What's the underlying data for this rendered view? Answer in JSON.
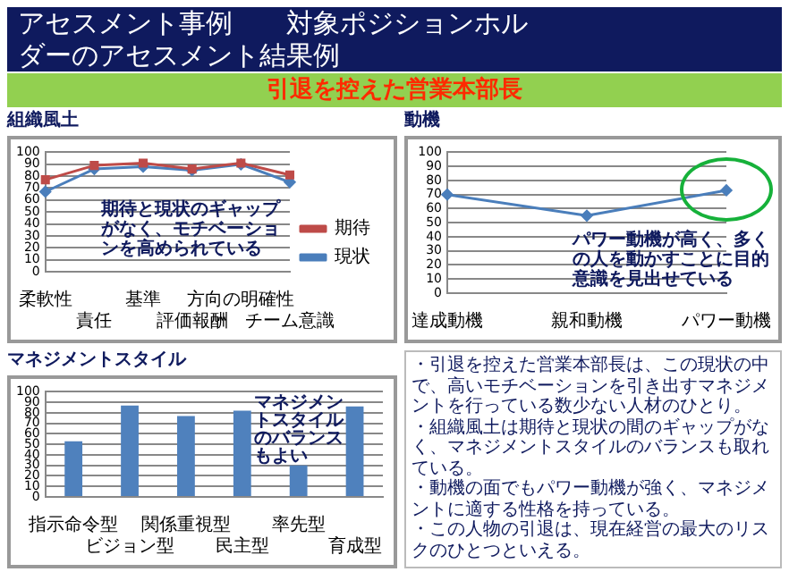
{
  "chart_data": [
    {
      "type": "other",
      "title": "アセスメント事例　　対象ポジションホルダーのアセスメント結果例",
      "subtitle": "引退を控えた営業本部長"
    },
    {
      "type": "line",
      "title": "組織風土",
      "categories": [
        "柔軟性",
        "責任",
        "基準",
        "評価報酬",
        "方向の明確性",
        "チーム意識"
      ],
      "series": [
        {
          "name": "現状",
          "color": "#4a7ebb",
          "marker": "diamond",
          "values": [
            67,
            86,
            88,
            85,
            90,
            75
          ]
        },
        {
          "name": "期待",
          "color": "#be4b48",
          "marker": "square",
          "values": [
            77,
            89,
            91,
            86,
            91,
            81
          ]
        }
      ],
      "ylim": [
        0,
        100
      ],
      "yticks": [
        0,
        10,
        20,
        30,
        40,
        50,
        60,
        70,
        80,
        90,
        100
      ],
      "grid": "y",
      "legend": "right",
      "annotations": [
        "期待と現状のギャップがなく、モチベーションを高められている"
      ]
    },
    {
      "type": "line",
      "title": "動機",
      "categories": [
        "達成動機",
        "親和動機",
        "パワー動機"
      ],
      "series": [
        {
          "color": "#4a7ebb",
          "marker": "diamond",
          "values": [
            70,
            55,
            73
          ]
        }
      ],
      "ylim": [
        0,
        100
      ],
      "yticks": [
        0,
        10,
        20,
        30,
        40,
        50,
        60,
        70,
        80,
        90,
        100
      ],
      "grid": "y",
      "annotations": [
        "パワー動機が高く、多くの人を動かすことに目的意識を見出せている"
      ]
    },
    {
      "type": "bar",
      "title": "マネジメントスタイル",
      "categories": [
        "指示命令型",
        "ビジョン型",
        "関係重視型",
        "民主型",
        "率先型",
        "育成型"
      ],
      "values": [
        53,
        87,
        77,
        82,
        30,
        86
      ],
      "color": "#4f81bd",
      "ylim": [
        0,
        100
      ],
      "yticks": [
        0,
        10,
        20,
        30,
        40,
        50,
        60,
        70,
        80,
        90,
        100
      ],
      "grid": "y",
      "annotations": [
        "マネジメントスタイルのバランスもよい"
      ]
    },
    {
      "type": "other",
      "annotations": [
        "・引退を控えた営業本部長は、この現状の中で、高いモチベーションを引き出すマネジメントを行っている数少ない人材のひとり。",
        "・組織風土は期待と現状の間のギャップがなく、マネジメントスタイルのバランスも取れている。",
        "・動機の面でもパワー動機が強く、マネジメントに適する性格を持っている。",
        "・この人物の引退は、現在経営の最大のリスクのひとつといえる。"
      ]
    }
  ]
}
